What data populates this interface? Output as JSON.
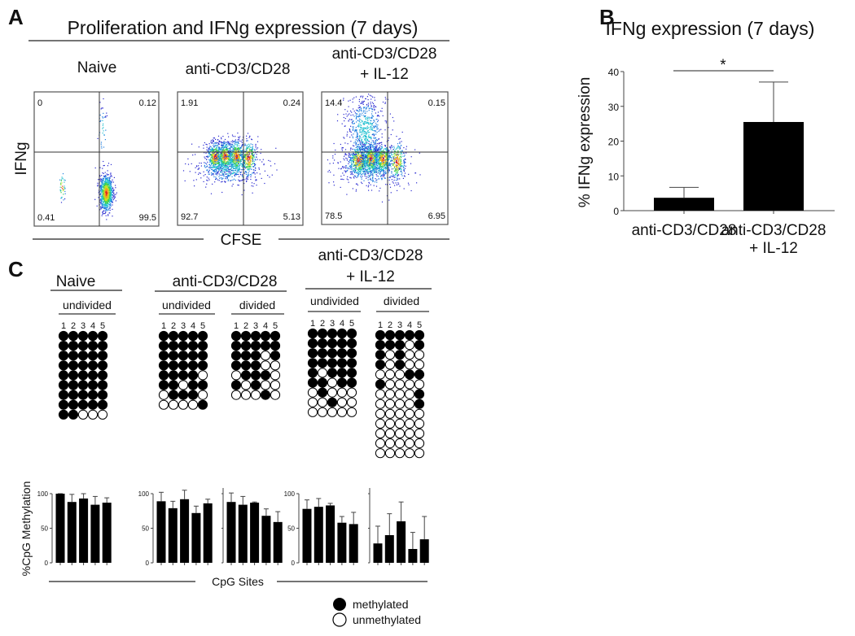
{
  "panel_letters": {
    "a": "A",
    "b": "B",
    "c": "C"
  },
  "chart_data": [
    {
      "type": "scatter",
      "id": "flow",
      "title": "Proliferation and IFNg expression (7 days)",
      "xlabel": "CFSE",
      "ylabel": "IFNg",
      "panels": [
        {
          "name": "Naive",
          "name_line2": "",
          "quadrants": {
            "upper_left": "0",
            "upper_right": "0.12",
            "lower_left": "0.41",
            "lower_right": "99.5"
          }
        },
        {
          "name": "anti-CD3/CD28",
          "name_line2": "",
          "quadrants": {
            "upper_left": "1.91",
            "upper_right": "0.24",
            "lower_left": "92.7",
            "lower_right": "5.13"
          }
        },
        {
          "name": "anti-CD3/CD28",
          "name_line2": "+ IL-12",
          "quadrants": {
            "upper_left": "14.4",
            "upper_right": "0.15",
            "lower_left": "78.5",
            "lower_right": "6.95"
          }
        }
      ]
    },
    {
      "type": "bar",
      "id": "ifng",
      "title": "IFNg expression (7 days)",
      "ylabel": "% IFNg expression",
      "xlabel": "",
      "categories": [
        "anti-CD3/CD28",
        "anti-CD3/CD28 + IL-12"
      ],
      "category_lines": [
        [
          "anti-CD3/CD28"
        ],
        [
          "anti-CD3/CD28",
          "+ IL-12"
        ]
      ],
      "values": [
        3.7,
        25.5
      ],
      "errors": [
        3.0,
        11.5
      ],
      "ylim": [
        0,
        40
      ],
      "yticks": [
        0,
        10,
        20,
        30,
        40
      ],
      "significance": "*"
    },
    {
      "type": "methylation",
      "id": "cpg",
      "xlabel": "CpG Sites",
      "ylabel": "%CpG Methylation",
      "site_labels": [
        "1",
        "2",
        "3",
        "4",
        "5"
      ],
      "groups": [
        {
          "title": "Naive",
          "title_line2": "",
          "subsets": [
            {
              "label": "undivided",
              "clones": [
                "11111",
                "11111",
                "11111",
                "11111",
                "11111",
                "11111",
                "11111",
                "11111",
                "11000"
              ],
              "percent": [
                100,
                88,
                93,
                84,
                87
              ],
              "errors": [
                0,
                11,
                7,
                12,
                7
              ],
              "yticks": [
                0,
                50,
                100
              ]
            }
          ]
        },
        {
          "title": "anti-CD3/CD28",
          "title_line2": "",
          "subsets": [
            {
              "label": "undivided",
              "clones": [
                "11111",
                "11111",
                "11111",
                "11111",
                "11110",
                "11011",
                "01110",
                "00001"
              ],
              "percent": [
                89,
                79,
                92,
                72,
                86
              ],
              "errors": [
                13,
                10,
                15,
                10,
                6
              ],
              "yticks": [
                0,
                50,
                100
              ]
            },
            {
              "label": "divided",
              "clones": [
                "11111",
                "11111",
                "11101",
                "11100",
                "01110",
                "10100",
                "00010"
              ],
              "percent": [
                88,
                84,
                87,
                68,
                59
              ],
              "errors": [
                13,
                12,
                1,
                10,
                15
              ],
              "yticks": []
            }
          ]
        },
        {
          "title": "anti-CD3/CD28",
          "title_line2": "+ IL-12",
          "subsets": [
            {
              "label": "undivided",
              "clones": [
                "11111",
                "11111",
                "11111",
                "11111",
                "10111",
                "11011",
                "01000",
                "00100",
                "00000"
              ],
              "percent": [
                78,
                81,
                83,
                58,
                56
              ],
              "errors": [
                13,
                12,
                3,
                9,
                17
              ],
              "yticks": [
                0,
                50,
                100
              ]
            },
            {
              "label": "divided",
              "clones": [
                "11111",
                "11101",
                "10100",
                "10100",
                "00011",
                "10000",
                "00001",
                "00001",
                "00000",
                "00000",
                "00000",
                "00000",
                "00000"
              ],
              "percent": [
                28,
                40,
                60,
                20,
                34
              ],
              "errors": [
                25,
                31,
                28,
                24,
                33
              ],
              "yticks": []
            }
          ]
        }
      ],
      "ylim": [
        0,
        100
      ],
      "legend": {
        "methylated": "methylated",
        "unmethylated": "unmethylated"
      }
    }
  ]
}
